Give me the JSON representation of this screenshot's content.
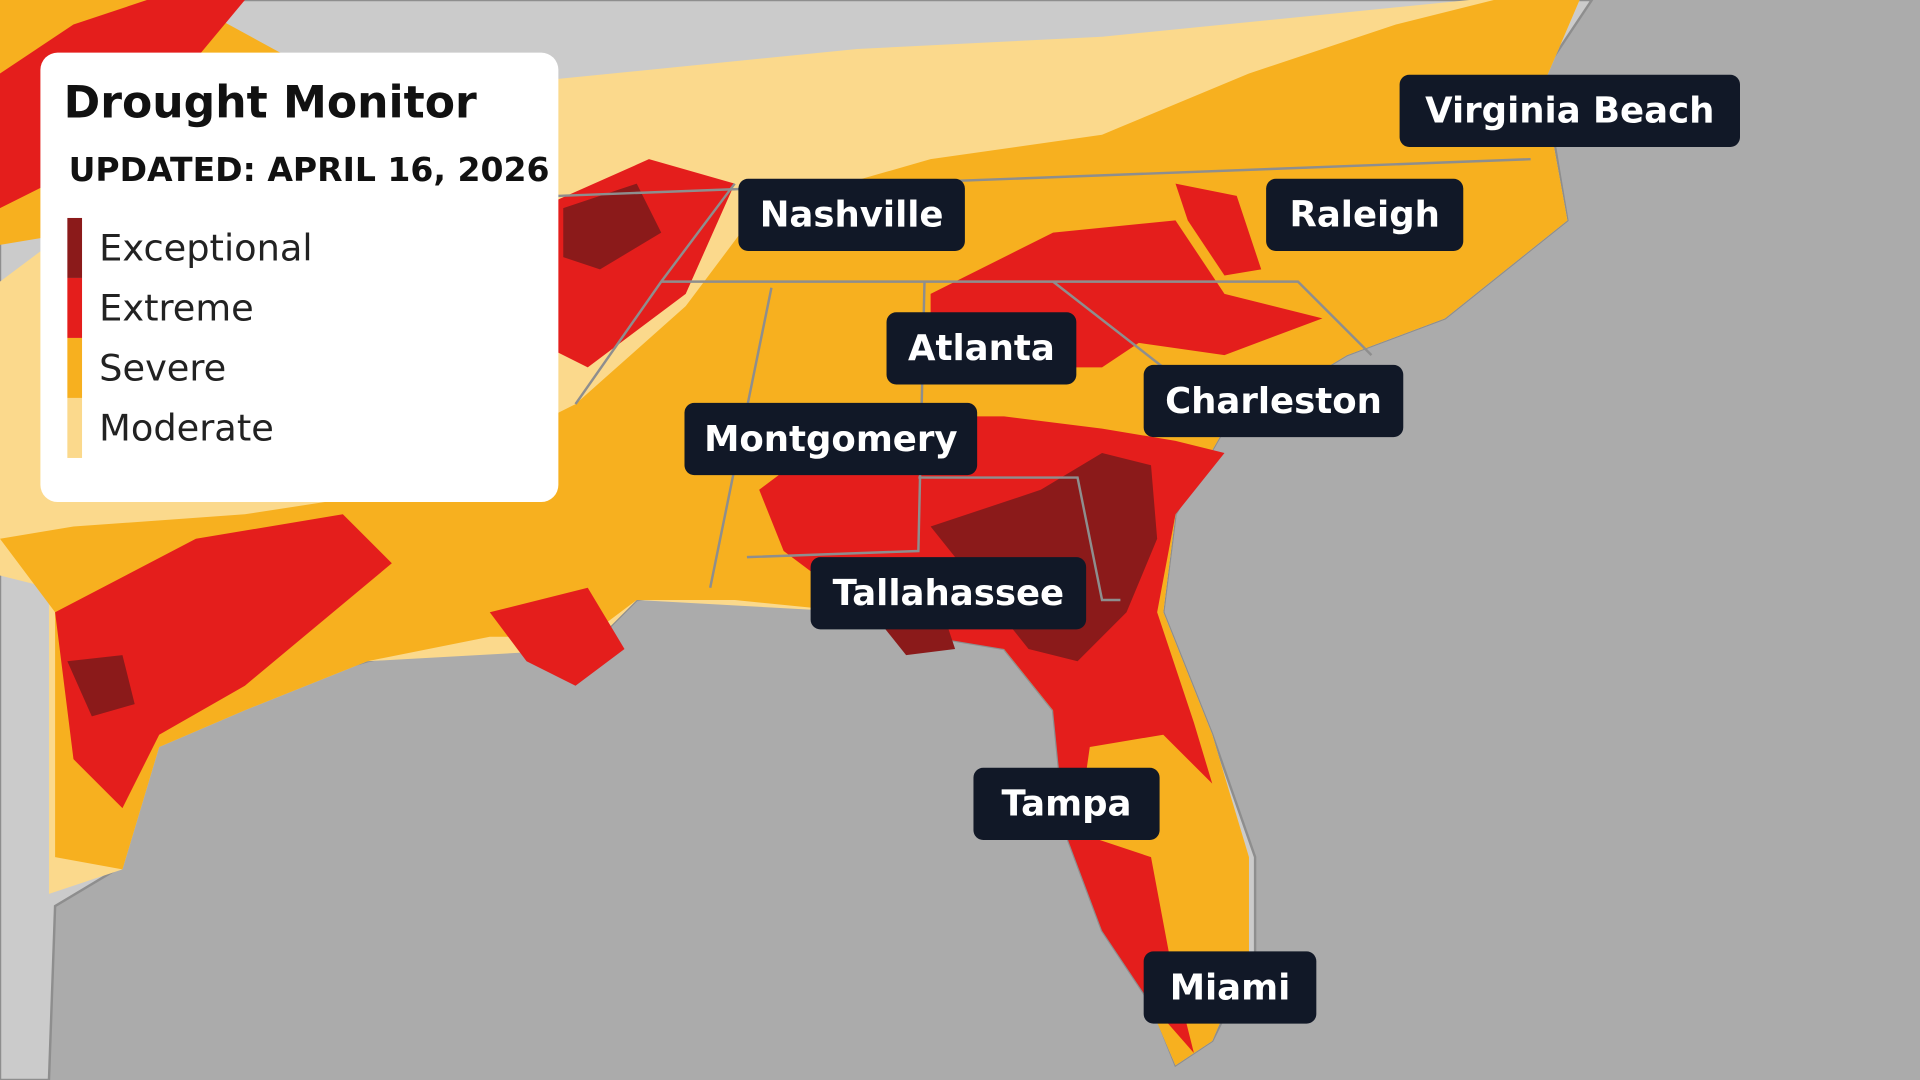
{
  "legend": {
    "title": "Drought Monitor",
    "updated": "UPDATED: APRIL 16, 2026",
    "items": [
      {
        "label": "Exceptional",
        "color": "#8b1a1a"
      },
      {
        "label": "Extreme",
        "color": "#e41e1c"
      },
      {
        "label": "Severe",
        "color": "#f7b01f"
      },
      {
        "label": "Moderate",
        "color": "#fbd98c"
      }
    ]
  },
  "cities": [
    {
      "label": "Virginia Beach"
    },
    {
      "label": "Nashville"
    },
    {
      "label": "Raleigh"
    },
    {
      "label": "Atlanta"
    },
    {
      "label": "Charleston"
    },
    {
      "label": "Montgomery"
    },
    {
      "label": "Tallahassee"
    },
    {
      "label": "Tampa"
    },
    {
      "label": "Miami"
    }
  ]
}
